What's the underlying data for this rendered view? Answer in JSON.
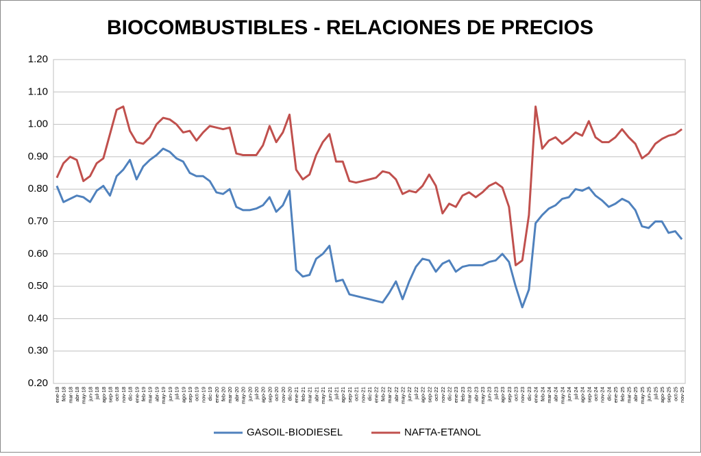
{
  "chart_data": {
    "type": "line",
    "title": "BIOCOMBUSTIBLES - RELACIONES DE PRECIOS",
    "categories": [
      "ene-18",
      "feb-18",
      "mar-18",
      "abr-18",
      "may-18",
      "jun-18",
      "jul-18",
      "ago-18",
      "sep-18",
      "oct-18",
      "nov-18",
      "dic-18",
      "ene-19",
      "feb-19",
      "mar-19",
      "abr-19",
      "may-19",
      "jun-19",
      "jul-19",
      "ago-19",
      "sep-19",
      "oct-19",
      "nov-19",
      "dic-19",
      "ene-20",
      "feb-20",
      "mar-20",
      "abr-20",
      "may-20",
      "jun-20",
      "jul-20",
      "ago-20",
      "sep-20",
      "oct-20",
      "nov-20",
      "dic-20",
      "ene-21",
      "feb-21",
      "mar-21",
      "abr-21",
      "may-21",
      "jun-21",
      "jul-21",
      "ago-21",
      "sep-21",
      "oct-21",
      "nov-21",
      "dic-21",
      "ene-22",
      "feb-22",
      "mar-22",
      "abr-22",
      "may-22",
      "jun-22",
      "jul-22",
      "ago-22",
      "sep-22",
      "oct-22",
      "nov-22",
      "dic-22",
      "ene-23",
      "feb-23",
      "mar-23",
      "abr-23",
      "may-23",
      "jun-23",
      "jul-23",
      "ago-23",
      "sep-23",
      "oct-23",
      "nov-23",
      "dic-23",
      "ene-24",
      "feb-24",
      "mar-24",
      "abr-24",
      "may-24",
      "jun-24",
      "jul-24",
      "ago-24",
      "sep-24",
      "oct-24",
      "nov-24",
      "dic-24",
      "ene-25",
      "feb-25",
      "mar-25",
      "abr-25",
      "may-25",
      "jun-25",
      "jul-25",
      "ago-25",
      "sep-25",
      "oct-25",
      "nov-25"
    ],
    "series": [
      {
        "name": "GASOIL-BIODIESEL",
        "color": "#4f81bd",
        "values": [
          0.81,
          0.76,
          0.77,
          0.78,
          0.775,
          0.76,
          0.795,
          0.81,
          0.78,
          0.84,
          0.86,
          0.89,
          0.83,
          0.87,
          0.89,
          0.905,
          0.925,
          0.915,
          0.895,
          0.885,
          0.85,
          0.84,
          0.84,
          0.825,
          0.79,
          0.785,
          0.8,
          0.745,
          0.735,
          0.735,
          0.74,
          0.75,
          0.775,
          0.73,
          0.75,
          0.795,
          0.55,
          0.53,
          0.535,
          0.585,
          0.6,
          0.625,
          0.515,
          0.52,
          0.475,
          0.47,
          0.465,
          0.46,
          0.455,
          0.45,
          0.48,
          0.515,
          0.46,
          0.515,
          0.56,
          0.585,
          0.58,
          0.545,
          0.57,
          0.58,
          0.545,
          0.56,
          0.565,
          0.565,
          0.565,
          0.575,
          0.58,
          0.6,
          0.575,
          0.5,
          0.435,
          0.49,
          0.695,
          0.72,
          0.74,
          0.75,
          0.77,
          0.775,
          0.8,
          0.795,
          0.805,
          0.78,
          0.765,
          0.745,
          0.755,
          0.77,
          0.76,
          0.735,
          0.685,
          0.68,
          0.7,
          0.7,
          0.665,
          0.67,
          0.645
        ]
      },
      {
        "name": "NAFTA-ETANOL",
        "color": "#c0504d",
        "values": [
          0.835,
          0.88,
          0.9,
          0.89,
          0.825,
          0.84,
          0.88,
          0.895,
          0.97,
          1.045,
          1.055,
          0.98,
          0.945,
          0.94,
          0.96,
          1.0,
          1.02,
          1.015,
          1.0,
          0.975,
          0.98,
          0.95,
          0.975,
          0.995,
          0.99,
          0.985,
          0.99,
          0.91,
          0.905,
          0.905,
          0.905,
          0.935,
          0.995,
          0.945,
          0.975,
          1.03,
          0.86,
          0.83,
          0.845,
          0.905,
          0.945,
          0.97,
          0.885,
          0.885,
          0.825,
          0.82,
          0.825,
          0.83,
          0.835,
          0.855,
          0.85,
          0.83,
          0.785,
          0.795,
          0.79,
          0.81,
          0.845,
          0.81,
          0.725,
          0.755,
          0.745,
          0.78,
          0.79,
          0.775,
          0.79,
          0.81,
          0.82,
          0.805,
          0.745,
          0.565,
          0.58,
          0.72,
          1.055,
          0.925,
          0.95,
          0.96,
          0.94,
          0.955,
          0.975,
          0.965,
          1.01,
          0.96,
          0.945,
          0.945,
          0.96,
          0.985,
          0.96,
          0.94,
          0.895,
          0.91,
          0.94,
          0.955,
          0.965,
          0.97,
          0.985
        ]
      }
    ],
    "ylim": [
      0.2,
      1.2
    ],
    "yticks": [
      {
        "value": 0.2,
        "label": "0.20"
      },
      {
        "value": 0.3,
        "label": "0.30"
      },
      {
        "value": 0.4,
        "label": "0.40"
      },
      {
        "value": 0.5,
        "label": "0.50"
      },
      {
        "value": 0.6,
        "label": "0.60"
      },
      {
        "value": 0.7,
        "label": "0.70"
      },
      {
        "value": 0.8,
        "label": "0.80"
      },
      {
        "value": 0.9,
        "label": "0.90"
      },
      {
        "value": 1.0,
        "label": "1.00"
      },
      {
        "value": 1.1,
        "label": "1.10"
      },
      {
        "value": 1.2,
        "label": "1.20"
      }
    ],
    "legend": "bottom"
  }
}
